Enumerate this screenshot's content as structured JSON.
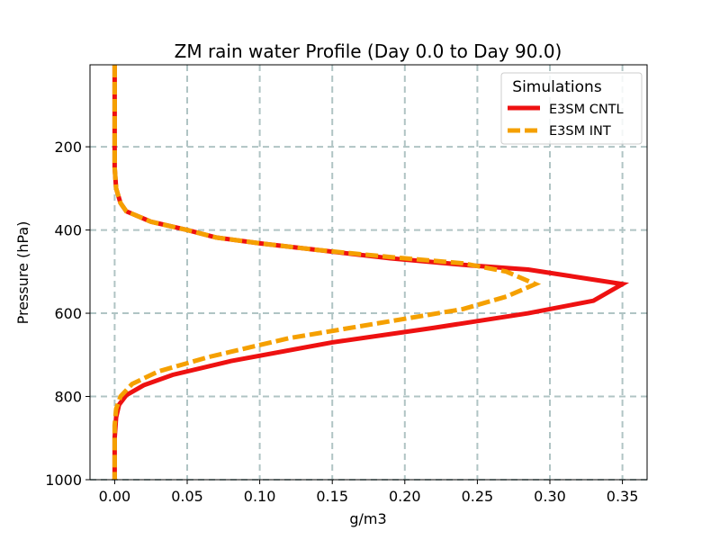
{
  "chart_data": {
    "type": "line",
    "title": "ZM rain water Profile (Day 0.0 to Day 90.0)",
    "xlabel": "g/m3",
    "ylabel": "Pressure (hPa)",
    "xlim": [
      -0.017,
      0.367
    ],
    "ylim": [
      1000,
      3
    ],
    "y_inverted": true,
    "grid": true,
    "xticks": [
      0.0,
      0.05,
      0.1,
      0.15,
      0.2,
      0.25,
      0.3,
      0.35
    ],
    "xtick_labels": [
      "0.00",
      "0.05",
      "0.10",
      "0.15",
      "0.20",
      "0.25",
      "0.30",
      "0.35"
    ],
    "yticks": [
      200,
      400,
      600,
      800,
      1000
    ],
    "ytick_labels": [
      "200",
      "400",
      "600",
      "800",
      "1000"
    ],
    "legend": {
      "title": "Simulations",
      "placement": "top-right"
    },
    "series": [
      {
        "name": "E3SM CNTL",
        "color": "#ee1111",
        "style": "solid",
        "x": [
          0.0,
          0.0,
          0.0,
          0.0,
          0.0,
          0.0,
          0.001,
          0.004,
          0.008,
          0.025,
          0.05,
          0.07,
          0.1,
          0.14,
          0.19,
          0.245,
          0.285,
          0.35,
          0.33,
          0.285,
          0.22,
          0.15,
          0.08,
          0.04,
          0.02,
          0.008,
          0.003,
          0.001,
          0.0,
          0.0,
          0.0
        ],
        "y": [
          3,
          50,
          100,
          150,
          200,
          250,
          300,
          335,
          355,
          380,
          400,
          418,
          432,
          448,
          468,
          485,
          495,
          530,
          570,
          600,
          635,
          670,
          715,
          748,
          773,
          797,
          820,
          850,
          900,
          950,
          1000
        ]
      },
      {
        "name": "E3SM INT",
        "color": "#f5a000",
        "style": "dashed",
        "x": [
          0.0,
          0.0,
          0.0,
          0.0,
          0.0,
          0.0,
          0.001,
          0.004,
          0.008,
          0.025,
          0.05,
          0.07,
          0.1,
          0.14,
          0.19,
          0.24,
          0.27,
          0.29,
          0.27,
          0.24,
          0.18,
          0.12,
          0.065,
          0.03,
          0.012,
          0.004,
          0.001,
          0.0,
          0.0,
          0.0
        ],
        "y": [
          3,
          50,
          100,
          150,
          200,
          250,
          300,
          335,
          355,
          380,
          400,
          418,
          432,
          448,
          465,
          480,
          500,
          530,
          560,
          590,
          625,
          660,
          705,
          740,
          770,
          800,
          830,
          870,
          950,
          1000
        ]
      }
    ]
  }
}
